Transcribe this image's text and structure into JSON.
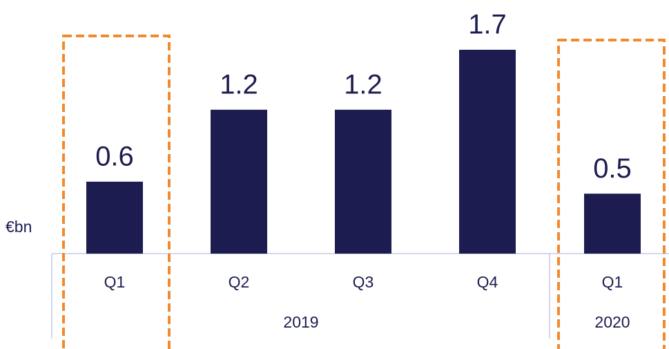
{
  "chart_data": {
    "type": "bar",
    "ylabel": "€bn",
    "categories": [
      "Q1",
      "Q2",
      "Q3",
      "Q4",
      "Q1"
    ],
    "values": [
      0.6,
      1.2,
      1.2,
      1.7,
      0.5
    ],
    "groups": [
      "2019",
      "2020"
    ],
    "color": "#1c1c50"
  }
}
